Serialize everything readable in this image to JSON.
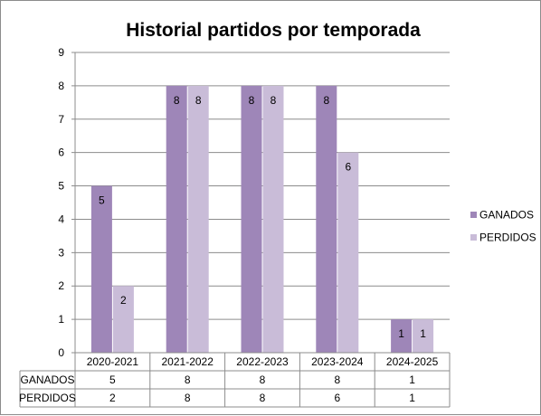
{
  "chart_data": {
    "type": "bar",
    "title": "Historial partidos por temporada",
    "categories": [
      "2020-2021",
      "2021-2022",
      "2022-2023",
      "2023-2024",
      "2024-2025"
    ],
    "series": [
      {
        "name": "GANADOS",
        "values": [
          5,
          8,
          8,
          8,
          1
        ],
        "color": "#9e86b8"
      },
      {
        "name": "PERDIDOS",
        "values": [
          2,
          8,
          8,
          6,
          1
        ],
        "color": "#c9bcd8"
      }
    ],
    "ylim": [
      0,
      9
    ],
    "yticks": [
      "0",
      "1",
      "2",
      "3",
      "4",
      "5",
      "6",
      "7",
      "8",
      "9"
    ],
    "grid": true,
    "legend": "right",
    "data_table": true,
    "data_labels": true,
    "gridline_color": "#8c8c8c",
    "frame_color": "#8c8c8c"
  }
}
